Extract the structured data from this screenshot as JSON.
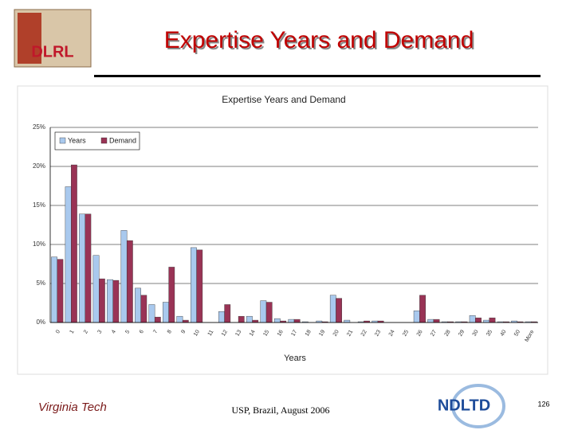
{
  "slide": {
    "title": "Expertise Years and Demand",
    "logo_left": "DLRL",
    "logo_bottom_left": "Virginia Tech",
    "footer": "USP, Brazil, August 2006",
    "logo_bottom_right": "NDLTD",
    "page_number": "126"
  },
  "chart_data": {
    "type": "bar",
    "title": "Expertise Years and Demand",
    "xlabel": "Years",
    "categories": [
      "0",
      "1",
      "2",
      "3",
      "4",
      "5",
      "6",
      "7",
      "8",
      "9",
      "10",
      "11",
      "12",
      "13",
      "14",
      "15",
      "16",
      "17",
      "18",
      "19",
      "20",
      "21",
      "22",
      "23",
      "24",
      "25",
      "26",
      "27",
      "28",
      "29",
      "30",
      "35",
      "40",
      "50",
      "More"
    ],
    "series": [
      {
        "name": "Years",
        "color": "#a9c9ee",
        "values": [
          8.4,
          17.4,
          13.9,
          8.6,
          5.5,
          11.8,
          4.4,
          2.3,
          2.6,
          0.8,
          9.6,
          0,
          1.4,
          0,
          0.8,
          2.8,
          0.5,
          0.4,
          0.1,
          0.2,
          3.5,
          0.3,
          0.1,
          0.2,
          0,
          0,
          1.5,
          0.4,
          0.1,
          0.1,
          0.9,
          0.3,
          0.1,
          0.2,
          0.1
        ]
      },
      {
        "name": "Demand",
        "color": "#993355",
        "values": [
          8.1,
          20.2,
          13.9,
          5.6,
          5.4,
          10.5,
          3.5,
          0.7,
          7.1,
          0.3,
          9.3,
          0,
          2.3,
          0.8,
          0.3,
          2.6,
          0.2,
          0.4,
          0,
          0.1,
          3.1,
          0,
          0.2,
          0.2,
          0,
          0,
          3.5,
          0.4,
          0.1,
          0.1,
          0.6,
          0.6,
          0.1,
          0.1,
          0.1
        ]
      }
    ],
    "ylim": [
      0,
      25
    ],
    "yticks": [
      {
        "value": 0,
        "label": "0%"
      },
      {
        "value": 5,
        "label": "5%"
      },
      {
        "value": 10,
        "label": "10%"
      },
      {
        "value": 15,
        "label": "15%"
      },
      {
        "value": 20,
        "label": "20%"
      },
      {
        "value": 25,
        "label": "25%"
      }
    ],
    "grid": true,
    "legend": "upper left"
  }
}
